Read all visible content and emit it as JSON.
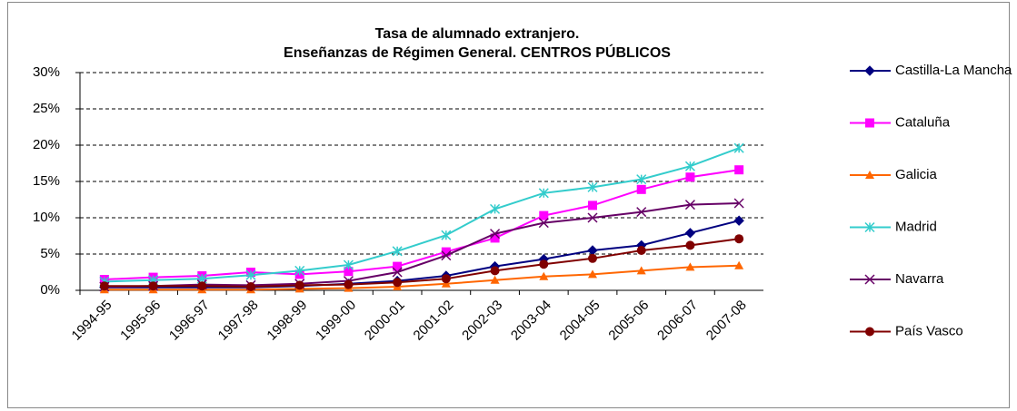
{
  "chart_data": {
    "type": "line",
    "title": [
      "Tasa de alumnado extranjero.",
      "Enseñanzas de Régimen General. CENTROS PÚBLICOS"
    ],
    "categories": [
      "1994-95",
      "1995-96",
      "1996-97",
      "1997-98",
      "1998-99",
      "1999-00",
      "2000-01",
      "2001-02",
      "2002-03",
      "2003-04",
      "2004-05",
      "2005-06",
      "2006-07",
      "2007-08"
    ],
    "series": [
      {
        "name": "Castilla-La Mancha",
        "color": "#000080",
        "marker": "diamond",
        "values": [
          0.4,
          0.4,
          0.4,
          0.4,
          0.6,
          0.9,
          1.3,
          2.0,
          3.3,
          4.3,
          5.5,
          6.2,
          7.9,
          9.6
        ]
      },
      {
        "name": "Cataluña",
        "color": "#FF00FF",
        "marker": "square",
        "values": [
          1.5,
          1.8,
          2.0,
          2.5,
          2.2,
          2.6,
          3.3,
          5.3,
          7.2,
          10.3,
          11.7,
          13.9,
          15.6,
          16.6
        ]
      },
      {
        "name": "Galicia",
        "color": "#FF6600",
        "marker": "triangle",
        "values": [
          0.1,
          0.1,
          0.1,
          0.1,
          0.2,
          0.3,
          0.5,
          0.9,
          1.4,
          1.9,
          2.2,
          2.7,
          3.2,
          3.4
        ]
      },
      {
        "name": "Madrid",
        "color": "#33CCCC",
        "marker": "star",
        "values": [
          1.2,
          1.4,
          1.6,
          2.1,
          2.7,
          3.5,
          5.4,
          7.6,
          11.2,
          13.4,
          14.2,
          15.3,
          17.1,
          19.6
        ]
      },
      {
        "name": "Navarra",
        "color": "#660066",
        "marker": "x",
        "values": [
          0.5,
          0.6,
          0.8,
          0.7,
          0.9,
          1.3,
          2.5,
          4.8,
          7.8,
          9.3,
          10.0,
          10.8,
          11.8,
          12.0
        ]
      },
      {
        "name": "País Vasco",
        "color": "#800000",
        "marker": "circle",
        "values": [
          0.6,
          0.6,
          0.6,
          0.5,
          0.7,
          0.8,
          1.1,
          1.6,
          2.7,
          3.6,
          4.4,
          5.5,
          6.2,
          7.1
        ]
      }
    ],
    "ylim": [
      0,
      30
    ],
    "yticks": [
      {
        "value": 0,
        "label": "0%"
      },
      {
        "value": 5,
        "label": "5%"
      },
      {
        "value": 10,
        "label": "10%"
      },
      {
        "value": 15,
        "label": "15%"
      },
      {
        "value": 20,
        "label": "20%"
      },
      {
        "value": 25,
        "label": "25%"
      },
      {
        "value": 30,
        "label": "30%"
      }
    ],
    "grid": true,
    "legend": "right"
  }
}
